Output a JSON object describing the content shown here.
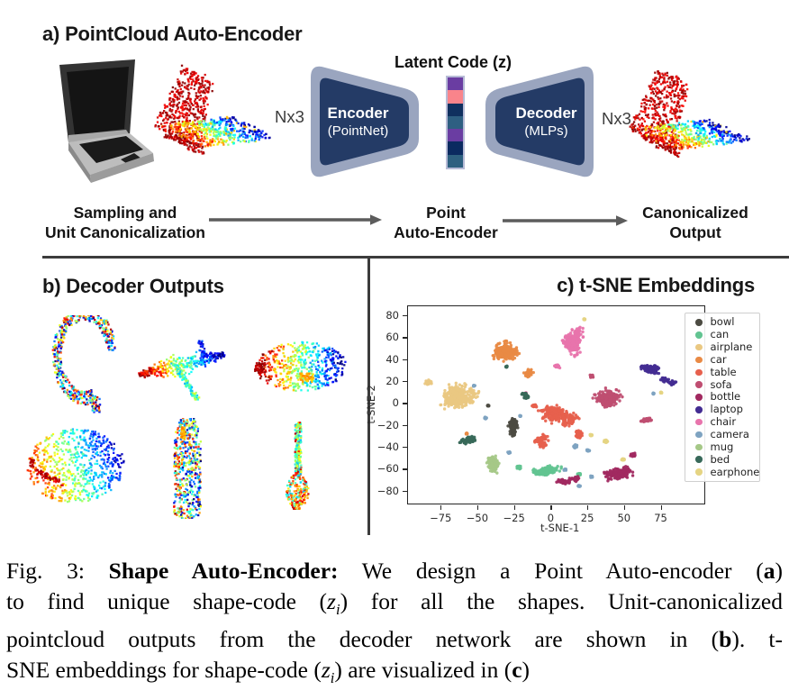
{
  "figure": {
    "panel_a": {
      "title": "a) PointCloud Auto-Encoder",
      "input_object": "laptop",
      "nx3_left": "Nx3",
      "nx3_right": "Nx3",
      "latent_code_label": "Latent Code (z)",
      "encoder": {
        "line1": "Encoder",
        "line2": "(PointNet)",
        "fill": "#243b66",
        "border": "#9aa5bf"
      },
      "decoder": {
        "line1": "Decoder",
        "line2": "(MLPs)",
        "fill": "#243b66",
        "border": "#9aa5bf"
      },
      "latent_code_colors": [
        "#6a3da2",
        "#f9848b",
        "#10305f",
        "#2e5f82",
        "#6a3da2",
        "#0b2a60",
        "#2e6080"
      ],
      "flow": {
        "steps": [
          [
            "Sampling and",
            "Unit Canonicalization"
          ],
          [
            "Point",
            "Auto-Encoder"
          ],
          [
            "Canonicalized",
            "Output"
          ]
        ]
      }
    },
    "panel_b": {
      "title": "b) Decoder Outputs",
      "objects": [
        "earphone",
        "airplane",
        "car",
        "bowl",
        "bottle",
        "lamp"
      ]
    },
    "panel_c": {
      "title": "c) t-SNE Embeddings"
    },
    "caption": {
      "lines": [
        [
          {
            "t": "Fig. 3: "
          },
          {
            "t": "Shape Auto-Encoder:",
            "b": 1
          },
          {
            "t": " We design a Point Auto-encoder (",
            "": 0
          },
          {
            "t": "a",
            "b": 1
          },
          {
            "t": ")"
          }
        ],
        [
          {
            "t": "to find unique shape-code ("
          },
          {
            "t": "z",
            "i": 1
          },
          {
            "t": "i",
            "i": 1,
            "sub": 1
          },
          {
            "t": ") for all the shapes. Unit-canonicalized"
          }
        ],
        [
          {
            "t": "pointcloud outputs from the decoder network are shown in ("
          },
          {
            "t": "b",
            "b": 1
          },
          {
            "t": "). t-"
          }
        ],
        [
          {
            "t": "SNE embeddings for shape-code ("
          },
          {
            "t": "z",
            "i": 1
          },
          {
            "t": "i",
            "i": 1,
            "sub": 1
          },
          {
            "t": ") are visualized in ("
          },
          {
            "t": "c",
            "b": 1
          },
          {
            "t": ")"
          }
        ]
      ]
    }
  },
  "chart_data": {
    "type": "scatter",
    "title": "c) t-SNE Embeddings",
    "xlabel": "t-SNE-1",
    "ylabel": "t-SNE-2",
    "xlim": [
      -97,
      105
    ],
    "ylim": [
      -92,
      88
    ],
    "xticks": [
      -75,
      -50,
      -25,
      0,
      25,
      50,
      75
    ],
    "yticks": [
      80,
      60,
      40,
      20,
      0,
      -20,
      -40,
      -60,
      -80
    ],
    "grid": false,
    "legend_position": "upper right",
    "series": [
      {
        "name": "bowl",
        "color": "#4c4b42",
        "clusters": [
          {
            "cx": -26,
            "cy": -20,
            "sx": 4,
            "sy": 10,
            "n": 95
          },
          {
            "cx": -42,
            "cy": -3,
            "sx": 1,
            "sy": 1,
            "n": 2
          }
        ]
      },
      {
        "name": "can",
        "color": "#62c491",
        "clusters": [
          {
            "cx": -3,
            "cy": -63,
            "sx": 10,
            "sy": 5,
            "n": 170
          },
          {
            "cx": -18,
            "cy": -59,
            "sx": 4,
            "sy": 3,
            "n": 35
          },
          {
            "cx": 20,
            "cy": -65,
            "sx": 3,
            "sy": 2,
            "n": 12
          }
        ]
      },
      {
        "name": "airplane",
        "color": "#eac882",
        "clusters": [
          {
            "cx": -64,
            "cy": 6,
            "sx": 15,
            "sy": 13,
            "n": 300
          },
          {
            "cx": -83,
            "cy": 21,
            "sx": 5,
            "sy": 4,
            "n": 35
          }
        ]
      },
      {
        "name": "car",
        "color": "#e98a45",
        "clusters": [
          {
            "cx": -30,
            "cy": 47,
            "sx": 13,
            "sy": 10,
            "n": 260
          },
          {
            "cx": -15,
            "cy": 27,
            "sx": 5,
            "sy": 6,
            "n": 55
          },
          {
            "cx": -57,
            "cy": -28,
            "sx": 1,
            "sy": 1,
            "n": 2
          }
        ]
      },
      {
        "name": "table",
        "color": "#e7604d",
        "clusters": [
          {
            "cx": 6,
            "cy": -14,
            "sx": 12,
            "sy": 10,
            "n": 260
          },
          {
            "cx": -5,
            "cy": -36,
            "sx": 6,
            "sy": 7,
            "n": 90
          },
          {
            "cx": 20,
            "cy": -30,
            "sx": 4,
            "sy": 5,
            "n": 55
          },
          {
            "cx": -12,
            "cy": -5,
            "sx": 3,
            "sy": 3,
            "n": 25
          }
        ]
      },
      {
        "name": "sofa",
        "color": "#bf4e71",
        "clusters": [
          {
            "cx": 38,
            "cy": 2,
            "sx": 9,
            "sy": 12,
            "n": 240
          },
          {
            "cx": 66,
            "cy": -15,
            "sx": 6,
            "sy": 3,
            "n": 50
          },
          {
            "cx": 28,
            "cy": 24,
            "sx": 3,
            "sy": 3,
            "n": 20
          }
        ]
      },
      {
        "name": "bottle",
        "color": "#a12960",
        "clusters": [
          {
            "cx": 45,
            "cy": -63,
            "sx": 10,
            "sy": 8,
            "n": 210
          },
          {
            "cx": 12,
            "cy": -72,
            "sx": 8,
            "sy": 4,
            "n": 80
          },
          {
            "cx": 55,
            "cy": -48,
            "sx": 3,
            "sy": 3,
            "n": 20
          }
        ]
      },
      {
        "name": "laptop",
        "color": "#432c92",
        "clusters": [
          {
            "cx": 70,
            "cy": 31,
            "sx": 9,
            "sy": 5,
            "n": 120
          },
          {
            "cx": 80,
            "cy": 20,
            "sx": 5,
            "sy": 4,
            "n": 55
          }
        ]
      },
      {
        "name": "chair",
        "color": "#e874ac",
        "clusters": [
          {
            "cx": 15,
            "cy": 55,
            "sx": 9,
            "sy": 12,
            "n": 240
          },
          {
            "cx": 5,
            "cy": 33,
            "sx": 4,
            "sy": 4,
            "n": 35
          },
          {
            "cx": -17,
            "cy": 9,
            "sx": 2,
            "sy": 2,
            "n": 10
          }
        ]
      },
      {
        "name": "camera",
        "color": "#7ea3c1",
        "clusters": [
          {
            "cx": 17,
            "cy": -41,
            "sx": 3,
            "sy": 3,
            "n": 16
          },
          {
            "cx": 25,
            "cy": -44,
            "sx": 2,
            "sy": 2,
            "n": 8
          },
          {
            "cx": -28,
            "cy": -45,
            "sx": 1.5,
            "sy": 1.5,
            "n": 5
          },
          {
            "cx": -45,
            "cy": -14,
            "sx": 1.5,
            "sy": 1.5,
            "n": 4
          },
          {
            "cx": 10,
            "cy": -60,
            "sx": 1.5,
            "sy": 1.5,
            "n": 4
          },
          {
            "cx": 20,
            "cy": -77,
            "sx": 1.5,
            "sy": 1.5,
            "n": 4
          },
          {
            "cx": 28,
            "cy": -68,
            "sx": 1.5,
            "sy": 1.5,
            "n": 3
          },
          {
            "cx": -20,
            "cy": -12,
            "sx": 1,
            "sy": 1,
            "n": 3
          },
          {
            "cx": -52,
            "cy": 15,
            "sx": 1,
            "sy": 1,
            "n": 2
          },
          {
            "cx": 70,
            "cy": 8,
            "sx": 1,
            "sy": 1,
            "n": 2
          }
        ]
      },
      {
        "name": "mug",
        "color": "#a5c887",
        "clusters": [
          {
            "cx": -38,
            "cy": -56,
            "sx": 5.5,
            "sy": 9,
            "n": 120
          }
        ]
      },
      {
        "name": "bed",
        "color": "#38695a",
        "clusters": [
          {
            "cx": -53,
            "cy": -33,
            "sx": 7,
            "sy": 4.5,
            "n": 80
          },
          {
            "cx": -17,
            "cy": 7,
            "sx": 4,
            "sy": 3,
            "n": 40
          },
          {
            "cx": -30,
            "cy": 33,
            "sx": 1,
            "sy": 1,
            "n": 2
          }
        ]
      },
      {
        "name": "earphone",
        "color": "#e5d483",
        "clusters": [
          {
            "cx": 38,
            "cy": -37,
            "sx": 2.5,
            "sy": 2.5,
            "n": 14
          },
          {
            "cx": 50,
            "cy": -52,
            "sx": 2,
            "sy": 1.5,
            "n": 8
          },
          {
            "cx": 28,
            "cy": -30,
            "sx": 1.5,
            "sy": 1.5,
            "n": 5
          },
          {
            "cx": 23,
            "cy": 76,
            "sx": 1,
            "sy": 1,
            "n": 3
          },
          {
            "cx": 75,
            "cy": 9,
            "sx": 1,
            "sy": 1,
            "n": 2
          }
        ]
      }
    ]
  }
}
